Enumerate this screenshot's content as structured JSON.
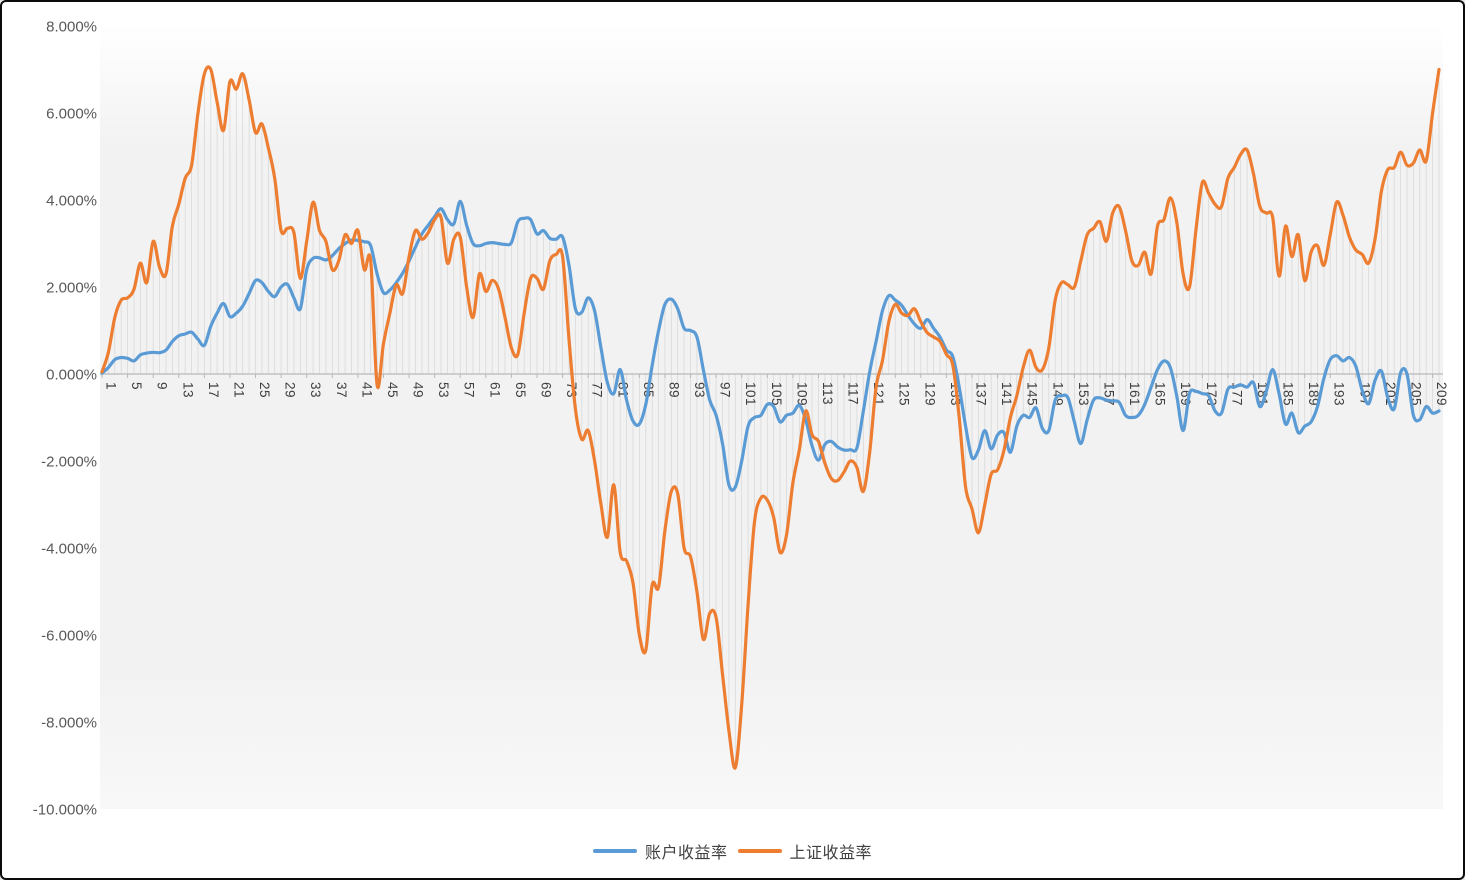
{
  "chart_data": {
    "type": "line",
    "smoothed": true,
    "title": "",
    "x_count": 210,
    "x_tick_step": 4,
    "x_tick_labels": [
      "1",
      "5",
      "9",
      "13",
      "17",
      "21",
      "25",
      "29",
      "33",
      "37",
      "41",
      "45",
      "49",
      "53",
      "57",
      "61",
      "65",
      "69",
      "73",
      "77",
      "81",
      "85",
      "89",
      "93",
      "97",
      "101",
      "105",
      "109",
      "113",
      "117",
      "121",
      "125",
      "129",
      "133",
      "137",
      "141",
      "145",
      "149",
      "153",
      "157",
      "161",
      "165",
      "169",
      "173",
      "177",
      "181",
      "185",
      "189",
      "193",
      "197",
      "201",
      "205",
      "209"
    ],
    "y_ticks": [
      8,
      6,
      4,
      2,
      0,
      -2,
      -4,
      -6,
      -8,
      -10
    ],
    "y_tick_labels": [
      "8.000%",
      "6.000%",
      "4.000%",
      "2.000%",
      "0.000%",
      "-2.000%",
      "-4.000%",
      "-6.000%",
      "-8.000%",
      "-10.000%"
    ],
    "ylim": [
      -10,
      8
    ],
    "grid": "vertical-drop-lines",
    "legend_position": "bottom-center",
    "series": [
      {
        "name": "账户收益率",
        "color": "#5B9BD5",
        "values": [
          0.02,
          0.15,
          0.33,
          0.38,
          0.36,
          0.3,
          0.44,
          0.48,
          0.5,
          0.49,
          0.55,
          0.75,
          0.88,
          0.92,
          0.96,
          0.8,
          0.66,
          1.1,
          1.4,
          1.62,
          1.32,
          1.4,
          1.56,
          1.85,
          2.15,
          2.1,
          1.9,
          1.78,
          2.0,
          2.06,
          1.75,
          1.5,
          2.4,
          2.66,
          2.67,
          2.62,
          2.72,
          2.88,
          3.0,
          3.08,
          3.07,
          3.04,
          2.95,
          2.3,
          1.87,
          1.93,
          2.1,
          2.32,
          2.6,
          2.92,
          3.22,
          3.42,
          3.62,
          3.8,
          3.55,
          3.45,
          3.97,
          3.42,
          3.0,
          2.95,
          3.0,
          3.02,
          3.0,
          2.98,
          3.02,
          3.5,
          3.58,
          3.55,
          3.22,
          3.3,
          3.12,
          3.1,
          3.15,
          2.5,
          1.5,
          1.42,
          1.75,
          1.45,
          0.6,
          -0.2,
          -0.45,
          0.1,
          -0.6,
          -1.08,
          -1.15,
          -0.7,
          0.2,
          1.0,
          1.6,
          1.72,
          1.5,
          1.05,
          1.0,
          0.85,
          0.1,
          -0.6,
          -0.95,
          -1.6,
          -2.55,
          -2.6,
          -2.0,
          -1.2,
          -1.0,
          -0.95,
          -0.7,
          -0.75,
          -1.1,
          -0.95,
          -0.9,
          -0.72,
          -1.05,
          -1.65,
          -1.98,
          -1.62,
          -1.55,
          -1.68,
          -1.75,
          -1.74,
          -1.7,
          -0.86,
          0.05,
          0.75,
          1.45,
          1.8,
          1.7,
          1.58,
          1.35,
          1.15,
          1.05,
          1.25,
          1.05,
          0.85,
          0.55,
          0.4,
          -0.3,
          -1.2,
          -1.92,
          -1.75,
          -1.3,
          -1.72,
          -1.4,
          -1.35,
          -1.8,
          -1.2,
          -0.95,
          -1.0,
          -0.78,
          -1.25,
          -1.3,
          -0.6,
          -0.5,
          -0.55,
          -1.1,
          -1.6,
          -1.05,
          -0.6,
          -0.55,
          -0.6,
          -0.62,
          -0.65,
          -0.95,
          -1.0,
          -0.95,
          -0.7,
          -0.3,
          0.1,
          0.3,
          0.15,
          -0.5,
          -1.3,
          -0.45,
          -0.4,
          -0.45,
          -0.5,
          -0.85,
          -0.9,
          -0.35,
          -0.3,
          -0.25,
          -0.3,
          -0.2,
          -0.75,
          -0.4,
          0.1,
          -0.45,
          -1.15,
          -0.9,
          -1.35,
          -1.2,
          -1.1,
          -0.75,
          -0.1,
          0.33,
          0.42,
          0.3,
          0.38,
          0.18,
          -0.38,
          -0.68,
          -0.15,
          0.07,
          -0.55,
          -0.8,
          0.03,
          0.0,
          -0.95,
          -1.05,
          -0.75,
          -0.9,
          -0.85
        ]
      },
      {
        "name": "上证收益率",
        "color": "#ED7D31",
        "values": [
          0.05,
          0.5,
          1.3,
          1.7,
          1.75,
          1.95,
          2.55,
          2.1,
          3.05,
          2.45,
          2.3,
          3.4,
          3.9,
          4.5,
          4.8,
          6.0,
          6.9,
          7.0,
          6.25,
          5.6,
          6.72,
          6.55,
          6.9,
          6.3,
          5.55,
          5.75,
          5.2,
          4.5,
          3.3,
          3.35,
          3.25,
          2.2,
          3.05,
          3.95,
          3.3,
          3.05,
          2.4,
          2.6,
          3.2,
          3.0,
          3.3,
          2.4,
          2.6,
          -0.25,
          0.7,
          1.4,
          2.05,
          1.85,
          2.7,
          3.3,
          3.1,
          3.25,
          3.55,
          3.6,
          2.55,
          3.1,
          3.15,
          2.0,
          1.3,
          2.3,
          1.9,
          2.15,
          1.95,
          1.3,
          0.6,
          0.45,
          1.4,
          2.2,
          2.2,
          1.95,
          2.6,
          2.75,
          2.7,
          0.8,
          -0.8,
          -1.5,
          -1.3,
          -2.0,
          -3.0,
          -3.75,
          -2.55,
          -4.1,
          -4.3,
          -4.8,
          -6.0,
          -6.35,
          -4.85,
          -4.9,
          -3.6,
          -2.7,
          -2.75,
          -4.0,
          -4.2,
          -5.0,
          -6.1,
          -5.5,
          -5.6,
          -6.9,
          -8.2,
          -9.05,
          -7.6,
          -5.3,
          -3.4,
          -2.85,
          -2.9,
          -3.3,
          -4.1,
          -3.7,
          -2.5,
          -1.75,
          -0.85,
          -1.4,
          -1.55,
          -2.05,
          -2.4,
          -2.45,
          -2.25,
          -2.0,
          -2.15,
          -2.7,
          -1.8,
          -0.3,
          0.3,
          1.2,
          1.6,
          1.4,
          1.35,
          1.5,
          1.2,
          0.95,
          0.85,
          0.75,
          0.45,
          0.2,
          -1.0,
          -2.6,
          -3.1,
          -3.65,
          -3.0,
          -2.3,
          -2.2,
          -1.75,
          -1.0,
          -0.5,
          0.15,
          0.55,
          0.15,
          0.1,
          0.6,
          1.7,
          2.1,
          2.05,
          2.0,
          2.6,
          3.2,
          3.35,
          3.5,
          3.05,
          3.7,
          3.85,
          3.3,
          2.6,
          2.5,
          2.8,
          2.3,
          3.4,
          3.55,
          4.05,
          3.5,
          2.3,
          2.0,
          3.3,
          4.4,
          4.15,
          3.9,
          3.85,
          4.5,
          4.75,
          5.05,
          5.15,
          4.6,
          3.85,
          3.7,
          3.6,
          2.25,
          3.4,
          2.7,
          3.2,
          2.15,
          2.8,
          2.95,
          2.5,
          3.2,
          3.95,
          3.65,
          3.15,
          2.85,
          2.75,
          2.55,
          3.1,
          4.2,
          4.7,
          4.75,
          5.1,
          4.8,
          4.85,
          5.15,
          4.9,
          6.0,
          7.0
        ]
      }
    ],
    "colors": {
      "plot_bg_top": "#ffffff",
      "plot_bg": "#f2f2f2",
      "drop_line": "#d9d9d9",
      "axis_line": "#b8b8b8",
      "y_label": "#595959",
      "x_label": "#3f3f3f"
    }
  }
}
